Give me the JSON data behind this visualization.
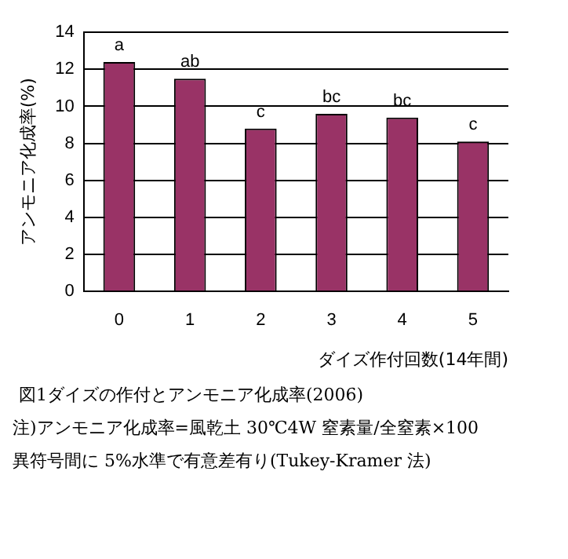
{
  "chart_data": {
    "type": "bar",
    "title": "図1ダイズの作付とアンモニア化成率(2006)",
    "xlabel": "ダイズ作付回数(14年間)",
    "ylabel": "アンモニア化成率(%)",
    "categories": [
      "0",
      "1",
      "2",
      "3",
      "4",
      "5"
    ],
    "values": [
      12.4,
      11.5,
      8.8,
      9.6,
      9.4,
      8.1
    ],
    "color": "#993366",
    "ylim": [
      0,
      14
    ],
    "yticks": [
      0,
      2,
      4,
      6,
      8,
      10,
      12,
      14
    ],
    "grid": "y",
    "annotations": [
      {
        "text": "a",
        "x": "0",
        "y": 12.4
      },
      {
        "text": "ab",
        "x": "1",
        "y": 11.5
      },
      {
        "text": "c",
        "x": "2",
        "y": 8.8
      },
      {
        "text": "bc",
        "x": "3",
        "y": 9.6
      },
      {
        "text": "bc",
        "x": "4",
        "y": 9.4
      },
      {
        "text": "c",
        "x": "5",
        "y": 8.1
      },
      "注)アンモニア化成率=風乾土 30℃4W 窒素量/全窒素×100",
      "異符号間に 5%水準で有意差有り(Tukey-Kramer 法)"
    ]
  }
}
